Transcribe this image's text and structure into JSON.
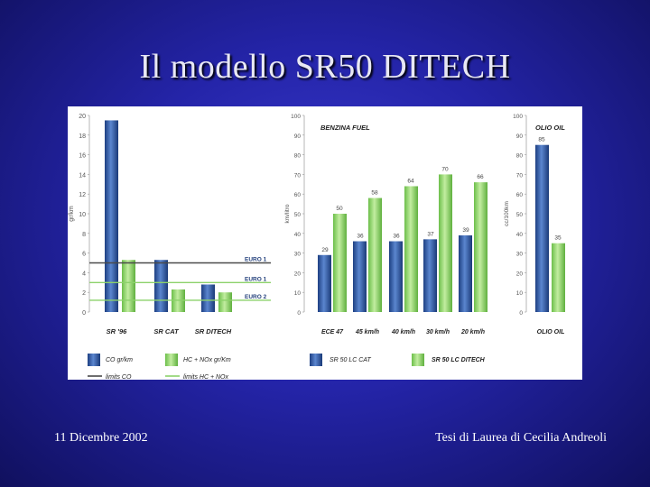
{
  "slide": {
    "title": "Il modello SR50 DITECH",
    "footer_left": "11 Dicembre 2002",
    "footer_right": "Tesi di Laurea di Cecilia Andreoli"
  },
  "colors": {
    "blue": "#2e5aa6",
    "green": "#8cd26a",
    "navy": "#23407c",
    "limit_green": "#8cd26a",
    "limit_gray": "#4a4a4a"
  },
  "chart_data": [
    {
      "id": "emissions",
      "type": "bar",
      "ylabel": "gr/km",
      "ylim": [
        0,
        20
      ],
      "yticks": [
        "20",
        "18",
        "16",
        "14",
        "12",
        "10",
        "8",
        "6",
        "4",
        "2",
        "0"
      ],
      "categories": [
        "SR '96",
        "SR CAT",
        "SR DITECH"
      ],
      "series": [
        {
          "name": "CO gr/km",
          "values": [
            19.5,
            5.3,
            2.8
          ]
        },
        {
          "name": "HC + NOx gr/Km",
          "values": [
            null,
            2.3,
            2.0
          ]
        }
      ],
      "limits": [
        {
          "label": "EURO 1",
          "value": 5.0,
          "kind": "CO"
        },
        {
          "label": "EURO 1",
          "value": 3.0,
          "kind": "HC+NOx"
        },
        {
          "label": "EURO 2",
          "value": 1.2,
          "kind": "HC+NOx"
        }
      ],
      "legend": [
        "CO gr/km",
        "HC + NOx gr/Km",
        "limits CO",
        "limits HC + NOx"
      ]
    },
    {
      "id": "benzina",
      "type": "bar",
      "title": "BENZINA FUEL",
      "ylabel": "km/litro",
      "ylim": [
        0,
        100
      ],
      "yticks": [
        "100",
        "90",
        "80",
        "70",
        "60",
        "50",
        "40",
        "30",
        "20",
        "10",
        "0"
      ],
      "categories": [
        "ECE 47",
        "45 km/h",
        "40 km/h",
        "30 km/h",
        "20 km/h"
      ],
      "series": [
        {
          "name": "SR 50 LC CAT",
          "values": [
            29,
            36,
            36,
            37,
            39
          ]
        },
        {
          "name": "SR 50 LC DITECH",
          "values": [
            50,
            58,
            64,
            70,
            66
          ]
        }
      ],
      "labels": [
        [
          "29",
          "36",
          "36",
          "37",
          "39"
        ],
        [
          "50",
          "58",
          "64",
          "70",
          "66"
        ]
      ],
      "legend": [
        "SR 50 LC CAT",
        "SR 50 LC DITECH"
      ]
    },
    {
      "id": "olio",
      "type": "bar",
      "title": "OLIO OIL",
      "ylabel": "cc/100km",
      "ylim": [
        0,
        100
      ],
      "yticks": [
        "100",
        "90",
        "80",
        "70",
        "60",
        "50",
        "40",
        "30",
        "20",
        "10",
        "0"
      ],
      "categories": [
        "OLIO OIL"
      ],
      "series": [
        {
          "name": "SR 50 LC CAT",
          "values": [
            85
          ]
        },
        {
          "name": "SR 50 LC DITECH",
          "values": [
            35
          ]
        }
      ],
      "labels": [
        [
          "85"
        ],
        [
          "35"
        ]
      ]
    }
  ]
}
